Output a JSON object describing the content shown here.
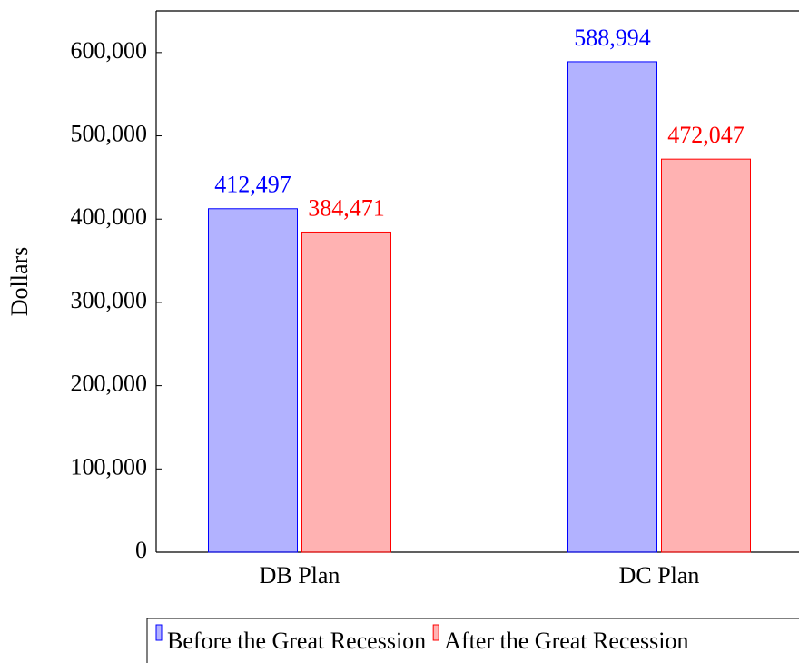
{
  "chart_data": {
    "type": "bar",
    "y_label": "Dollars",
    "categories": [
      "DB Plan",
      "DC Plan"
    ],
    "series": [
      {
        "name": "Before the Great Recession",
        "color": "#0000ff",
        "values": [
          412497,
          588994
        ],
        "value_labels": [
          "412,497",
          "588,994"
        ]
      },
      {
        "name": "After the Great Recession",
        "color": "#ff0000",
        "values": [
          384471,
          472047
        ],
        "value_labels": [
          "384,471",
          "472,047"
        ]
      }
    ],
    "ylim": [
      0,
      650000
    ],
    "yticks": [
      0,
      {
        "value": 100000,
        "label": "100,000"
      },
      {
        "value": 200000,
        "label": "200,000"
      },
      {
        "value": 300000,
        "label": "300,000"
      },
      {
        "value": 400000,
        "label": "400,000"
      },
      {
        "value": 500000,
        "label": "500,000"
      },
      {
        "value": 600000,
        "label": "600,000"
      }
    ],
    "grid": false,
    "legend": "bottom"
  }
}
